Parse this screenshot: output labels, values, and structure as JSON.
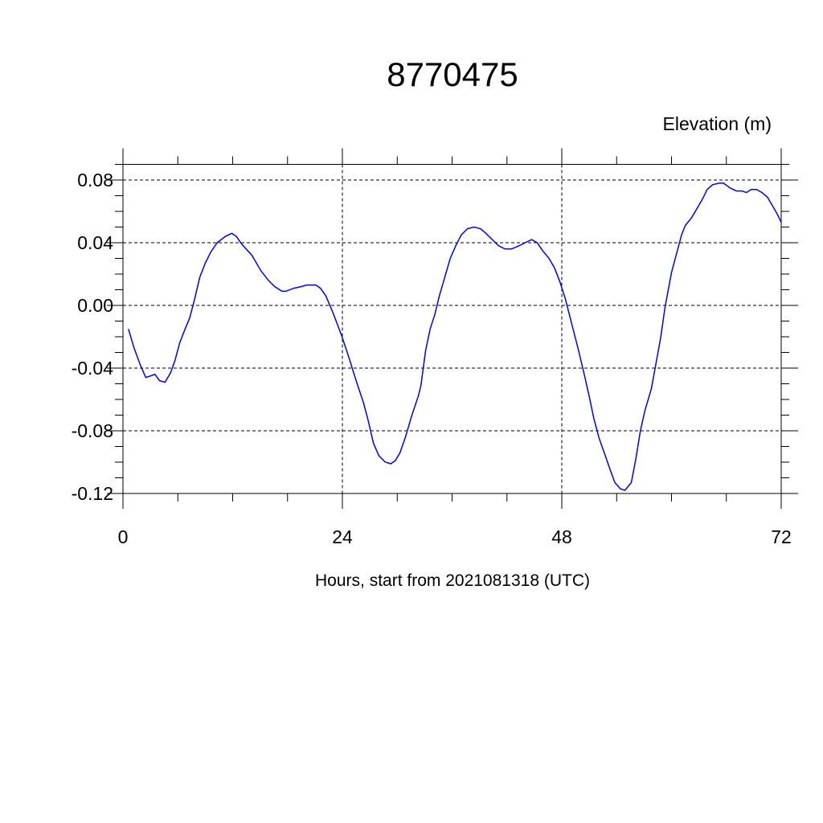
{
  "chart_data": {
    "type": "line",
    "title": "8770475",
    "ylabel": "Elevation (m)",
    "xlabel": "Hours, start from 2021081318 (UTC)",
    "color": "#0000ee",
    "grid": true,
    "xlim": [
      0,
      72
    ],
    "xticks": [
      0,
      24,
      48,
      72
    ],
    "xminorticks": [
      6,
      12,
      18,
      30,
      36,
      42,
      54,
      60,
      66
    ],
    "ylim": [
      -0.12,
      0.09
    ],
    "yticks": [
      -0.12,
      -0.08,
      -0.04,
      {
        "value": 0,
        "label": "0.00"
      },
      0.04,
      0.08
    ],
    "yminorticks": [
      -0.11,
      -0.1,
      -0.09,
      -0.07,
      -0.06,
      -0.05,
      -0.03,
      -0.02,
      -0.01,
      0.01,
      0.02,
      0.03,
      0.05,
      0.06,
      0.07,
      0.09
    ],
    "x": [
      0.6,
      1.2,
      1.9,
      2.5,
      3.5,
      4.0,
      4.6,
      5.2,
      5.7,
      6.2,
      6.8,
      7.3,
      7.8,
      8.4,
      9.0,
      9.6,
      10.3,
      11.2,
      11.9,
      12.4,
      13.0,
      14.1,
      15.1,
      15.9,
      16.6,
      17.4,
      17.8,
      18.7,
      19.5,
      20.1,
      20.7,
      21.1,
      21.6,
      22.2,
      23.0,
      23.9,
      24.7,
      25.5,
      26.3,
      26.8,
      27.4,
      28.0,
      28.7,
      29.3,
      29.8,
      30.3,
      30.9,
      31.6,
      32.3,
      32.6,
      33.1,
      33.6,
      34.1,
      34.6,
      35.2,
      35.8,
      36.4,
      37.0,
      37.7,
      38.4,
      39.1,
      39.7,
      40.4,
      41.1,
      41.8,
      42.5,
      43.3,
      44.0,
      44.7,
      45.3,
      45.9,
      46.6,
      47.2,
      47.8,
      48.4,
      49.1,
      49.8,
      50.5,
      51.0,
      51.5,
      52.1,
      52.7,
      53.3,
      53.8,
      54.4,
      54.9,
      55.6,
      56.1,
      56.6,
      57.1,
      57.8,
      58.3,
      58.8,
      59.3,
      60.0,
      60.6,
      61.1,
      61.5,
      62.2,
      62.8,
      63.4,
      63.9,
      64.5,
      65.2,
      65.7,
      66.4,
      67.1,
      67.7,
      68.2,
      68.7,
      69.3,
      69.9,
      70.5,
      71.1,
      71.6,
      72.0
    ],
    "values": [
      -0.015,
      -0.027,
      -0.038,
      -0.046,
      -0.044,
      -0.048,
      -0.049,
      -0.043,
      -0.035,
      -0.024,
      -0.015,
      -0.008,
      0.003,
      0.018,
      0.027,
      0.034,
      0.04,
      0.044,
      0.046,
      0.044,
      0.039,
      0.032,
      0.022,
      0.016,
      0.012,
      0.009,
      0.009,
      0.011,
      0.012,
      0.013,
      0.013,
      0.013,
      0.011,
      0.006,
      -0.005,
      -0.019,
      -0.033,
      -0.048,
      -0.062,
      -0.073,
      -0.088,
      -0.096,
      -0.1,
      -0.101,
      -0.099,
      -0.094,
      -0.084,
      -0.07,
      -0.058,
      -0.051,
      -0.029,
      -0.015,
      -0.006,
      0.006,
      0.018,
      0.03,
      0.038,
      0.045,
      0.049,
      0.05,
      0.049,
      0.046,
      0.042,
      0.038,
      0.036,
      0.036,
      0.038,
      0.04,
      0.042,
      0.04,
      0.035,
      0.03,
      0.024,
      0.015,
      0.004,
      -0.012,
      -0.028,
      -0.045,
      -0.058,
      -0.072,
      -0.085,
      -0.095,
      -0.105,
      -0.113,
      -0.117,
      -0.118,
      -0.113,
      -0.098,
      -0.08,
      -0.067,
      -0.053,
      -0.037,
      -0.021,
      -0.001,
      0.021,
      0.034,
      0.045,
      0.051,
      0.056,
      0.062,
      0.068,
      0.074,
      0.077,
      0.078,
      0.078,
      0.075,
      0.073,
      0.073,
      0.072,
      0.074,
      0.074,
      0.072,
      0.069,
      0.063,
      0.058,
      0.053
    ]
  }
}
